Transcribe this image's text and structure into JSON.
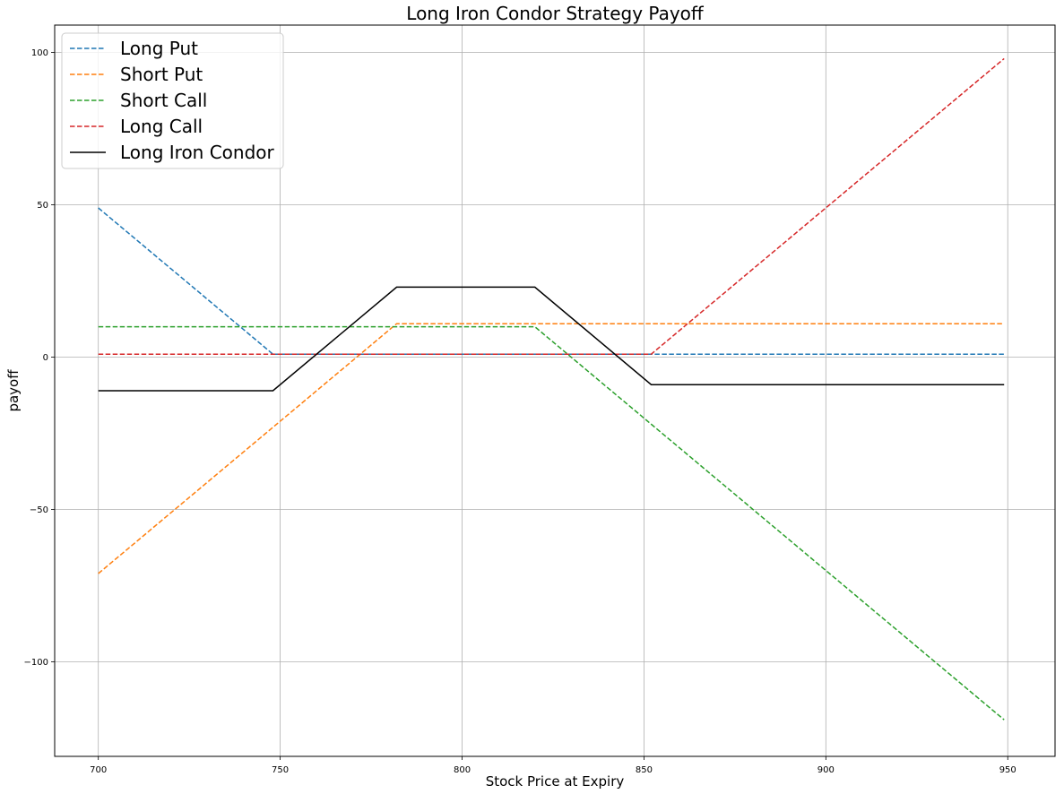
{
  "chart_data": {
    "type": "line",
    "title": "Long Iron Condor Strategy Payoff",
    "xlabel": "Stock Price at Expiry",
    "ylabel": "payoff",
    "xlim": [
      688,
      963
    ],
    "ylim": [
      -131,
      109
    ],
    "xticks": [
      700,
      750,
      800,
      850,
      900,
      950
    ],
    "yticks": [
      -100,
      -50,
      0,
      50,
      100
    ],
    "ytick_labels": [
      "−100",
      "−50",
      "0",
      "50",
      "100"
    ],
    "grid": true,
    "legend_position": "top-left",
    "series": [
      {
        "name": "Long Put",
        "color": "#1f77b4",
        "style": "dashed",
        "points": [
          [
            700,
            49
          ],
          [
            748,
            1
          ],
          [
            949,
            1
          ]
        ]
      },
      {
        "name": "Short Put",
        "color": "#ff7f0e",
        "style": "dashed",
        "points": [
          [
            700,
            -71
          ],
          [
            782,
            11
          ],
          [
            949,
            11
          ]
        ]
      },
      {
        "name": "Short Call",
        "color": "#2ca02c",
        "style": "dashed",
        "points": [
          [
            700,
            10
          ],
          [
            820,
            10
          ],
          [
            949,
            -119
          ]
        ]
      },
      {
        "name": "Long Call",
        "color": "#d62728",
        "style": "dashed",
        "points": [
          [
            700,
            1
          ],
          [
            852,
            1
          ],
          [
            949,
            98
          ]
        ]
      },
      {
        "name": "Long Iron Condor",
        "color": "#000000",
        "style": "solid",
        "points": [
          [
            700,
            -11
          ],
          [
            748,
            -11
          ],
          [
            782,
            23
          ],
          [
            820,
            23
          ],
          [
            852,
            -9
          ],
          [
            949,
            -9
          ]
        ]
      }
    ]
  }
}
